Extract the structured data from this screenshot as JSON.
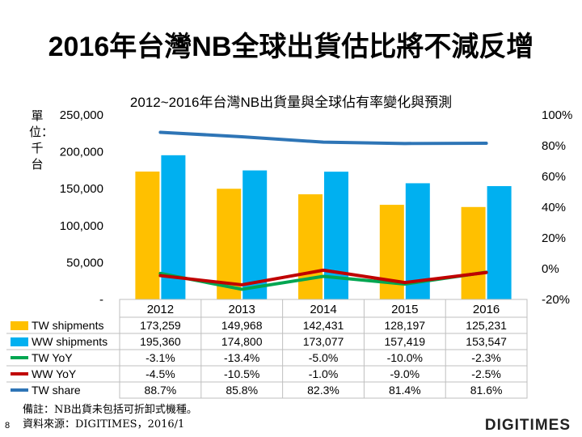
{
  "slide": {
    "title": "2016年台灣NB全球出貨估比將不減反增",
    "unit_label": "單位：千台",
    "footnote_lines": [
      "備註：NB出貨未包括可折卸式機種。",
      "資料來源：DIGITIMES，2016/1"
    ],
    "page_number": "8",
    "brand": "DIGITIMES"
  },
  "chart_data": {
    "type": "bar",
    "title": "2012~2016年台灣NB出貨量與全球佔有率變化與預測",
    "categories": [
      "2012",
      "2013",
      "2014",
      "2015",
      "2016"
    ],
    "left_axis": {
      "ylim": [
        0,
        250000
      ],
      "ticks": [
        250000,
        200000,
        150000,
        100000,
        50000,
        0
      ],
      "tick_labels": [
        "250,000",
        "200,000",
        "150,000",
        "100,000",
        "50,000",
        "-"
      ]
    },
    "right_axis": {
      "ylim": [
        -20,
        100
      ],
      "ticks": [
        100,
        80,
        60,
        40,
        20,
        0,
        -20
      ],
      "tick_labels": [
        "100%",
        "80%",
        "60%",
        "40%",
        "20%",
        "0%",
        "-20%"
      ]
    },
    "series": [
      {
        "name": "TW shipments",
        "kind": "bar",
        "axis": "left",
        "color": "#FFC000",
        "values": [
          173259,
          149968,
          142431,
          128197,
          125231
        ],
        "labels": [
          "173,259",
          "149,968",
          "142,431",
          "128,197",
          "125,231"
        ]
      },
      {
        "name": "WW shipments",
        "kind": "bar",
        "axis": "left",
        "color": "#00B0F0",
        "values": [
          195360,
          174800,
          173077,
          157419,
          153547
        ],
        "labels": [
          "195,360",
          "174,800",
          "173,077",
          "157,419",
          "153,547"
        ]
      },
      {
        "name": "TW YoY",
        "kind": "line",
        "axis": "right",
        "color": "#00A651",
        "values": [
          -3.1,
          -13.4,
          -5.0,
          -10.0,
          -2.3
        ],
        "labels": [
          "-3.1%",
          "-13.4%",
          "-5.0%",
          "-10.0%",
          "-2.3%"
        ]
      },
      {
        "name": "WW YoY",
        "kind": "line",
        "axis": "right",
        "color": "#C00000",
        "values": [
          -4.5,
          -10.5,
          -1.0,
          -9.0,
          -2.5
        ],
        "labels": [
          "-4.5%",
          "-10.5%",
          "-1.0%",
          "-9.0%",
          "-2.5%"
        ]
      },
      {
        "name": "TW share",
        "kind": "line",
        "axis": "right",
        "color": "#2E75B6",
        "values": [
          88.7,
          85.8,
          82.3,
          81.4,
          81.6
        ],
        "labels": [
          "88.7%",
          "85.8%",
          "82.3%",
          "81.4%",
          "81.6%"
        ]
      }
    ]
  }
}
